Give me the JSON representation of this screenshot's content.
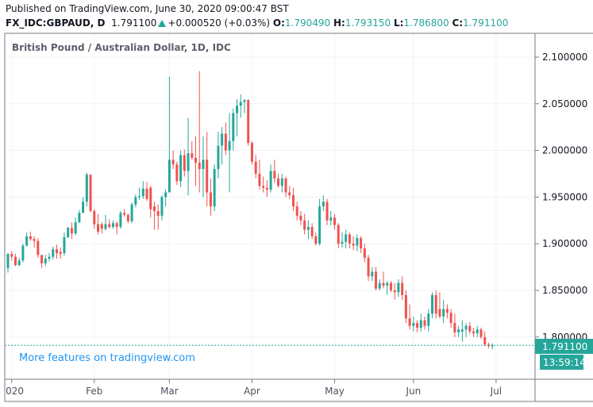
{
  "header": {
    "published": "Published on TradingView.com, June 30, 2020 09:00:47 BST",
    "symbol": "FX_IDC:GBPAUD, D",
    "last": "1.791100",
    "change": "+0.000520 (+0.03%)",
    "open_label": "O:",
    "open": "1.790490",
    "high_label": "H:",
    "high": "1.793150",
    "low_label": "L:",
    "low": "1.786800",
    "close_label": "C:",
    "close": "1.791100"
  },
  "chart_title": "British Pound / Australian Dollar, 1D, IDC",
  "watermark_link": "More features on tradingview.com",
  "colors": {
    "up": "#26a69a",
    "down": "#ef5350",
    "grid": "#f0f3fa",
    "axis": "#787b86",
    "link": "#2196f3"
  },
  "chart_data": {
    "type": "candlestick",
    "ylim": [
      1.775,
      2.125
    ],
    "price_ticks": [
      "2.100000",
      "2.050000",
      "2.000000",
      "1.950000",
      "1.900000",
      "1.850000",
      "1.800000"
    ],
    "time_ticks": [
      {
        "label": "2020",
        "date": "2020-01-02"
      },
      {
        "label": "Feb",
        "date": "2020-02-03"
      },
      {
        "label": "Mar",
        "date": "2020-03-02"
      },
      {
        "label": "Apr",
        "date": "2020-04-01"
      },
      {
        "label": "May",
        "date": "2020-05-01"
      },
      {
        "label": "Jun",
        "date": "2020-06-01"
      },
      {
        "label": "Jul",
        "date": "2020-07-01"
      }
    ],
    "last_price": "1.791100",
    "countdown": "13:59:14",
    "candles": [
      [
        "2020-01-01",
        1.874,
        1.89,
        1.869,
        1.889
      ],
      [
        "2020-01-02",
        1.889,
        1.892,
        1.882,
        1.886
      ],
      [
        "2020-01-03",
        1.886,
        1.889,
        1.876,
        1.877
      ],
      [
        "2020-01-06",
        1.877,
        1.885,
        1.876,
        1.882
      ],
      [
        "2020-01-07",
        1.882,
        1.9,
        1.88,
        1.898
      ],
      [
        "2020-01-08",
        1.898,
        1.912,
        1.897,
        1.908
      ],
      [
        "2020-01-09",
        1.908,
        1.913,
        1.903,
        1.905
      ],
      [
        "2020-01-10",
        1.905,
        1.908,
        1.896,
        1.903
      ],
      [
        "2020-01-13",
        1.903,
        1.906,
        1.885,
        1.888
      ],
      [
        "2020-01-14",
        1.888,
        1.888,
        1.874,
        1.879
      ],
      [
        "2020-01-15",
        1.879,
        1.888,
        1.876,
        1.884
      ],
      [
        "2020-01-16",
        1.884,
        1.89,
        1.881,
        1.886
      ],
      [
        "2020-01-17",
        1.886,
        1.897,
        1.883,
        1.894
      ],
      [
        "2020-01-20",
        1.894,
        1.899,
        1.884,
        1.89
      ],
      [
        "2020-01-21",
        1.891,
        1.896,
        1.884,
        1.889
      ],
      [
        "2020-01-22",
        1.89,
        1.912,
        1.887,
        1.907
      ],
      [
        "2020-01-23",
        1.907,
        1.918,
        1.906,
        1.917
      ],
      [
        "2020-01-24",
        1.917,
        1.923,
        1.905,
        1.911
      ],
      [
        "2020-01-27",
        1.911,
        1.928,
        1.909,
        1.923
      ],
      [
        "2020-01-28",
        1.923,
        1.936,
        1.922,
        1.933
      ],
      [
        "2020-01-29",
        1.933,
        1.95,
        1.933,
        1.945
      ],
      [
        "2020-01-30",
        1.945,
        1.976,
        1.94,
        1.974
      ],
      [
        "2020-01-31",
        1.974,
        1.974,
        1.934,
        1.935
      ],
      [
        "2020-02-03",
        1.935,
        1.937,
        1.916,
        1.921
      ],
      [
        "2020-02-04",
        1.921,
        1.932,
        1.91,
        1.913
      ],
      [
        "2020-02-05",
        1.921,
        1.923,
        1.911,
        1.916
      ],
      [
        "2020-02-06",
        1.916,
        1.931,
        1.914,
        1.921
      ],
      [
        "2020-02-07",
        1.921,
        1.926,
        1.916,
        1.918
      ],
      [
        "2020-02-10",
        1.918,
        1.925,
        1.916,
        1.922
      ],
      [
        "2020-02-11",
        1.922,
        1.924,
        1.91,
        1.918
      ],
      [
        "2020-02-12",
        1.918,
        1.935,
        1.916,
        1.933
      ],
      [
        "2020-02-13",
        1.933,
        1.937,
        1.929,
        1.931
      ],
      [
        "2020-02-14",
        1.931,
        1.932,
        1.922,
        1.924
      ],
      [
        "2020-02-17",
        1.924,
        1.944,
        1.922,
        1.942
      ],
      [
        "2020-02-18",
        1.942,
        1.953,
        1.939,
        1.95
      ],
      [
        "2020-02-19",
        1.95,
        1.96,
        1.947,
        1.951
      ],
      [
        "2020-02-20",
        1.951,
        1.967,
        1.948,
        1.959
      ],
      [
        "2020-02-21",
        1.959,
        1.966,
        1.946,
        1.948
      ],
      [
        "2020-02-24",
        1.96,
        1.962,
        1.928,
        1.937
      ],
      [
        "2020-02-25",
        1.94,
        1.945,
        1.915,
        1.935
      ],
      [
        "2020-02-26",
        1.935,
        1.942,
        1.915,
        1.93
      ],
      [
        "2020-02-27",
        1.93,
        1.952,
        1.925,
        1.95
      ],
      [
        "2020-02-28",
        1.95,
        1.958,
        1.94,
        1.955
      ],
      [
        "2020-03-02",
        1.955,
        2.079,
        1.955,
        1.99
      ],
      [
        "2020-03-03",
        1.99,
        2.0,
        1.98,
        1.985
      ],
      [
        "2020-03-04",
        1.985,
        1.988,
        1.963,
        1.967
      ],
      [
        "2020-03-05",
        1.967,
        2.0,
        1.961,
        1.995
      ],
      [
        "2020-03-06",
        1.995,
        2.001,
        1.972,
        1.978
      ],
      [
        "2020-03-09",
        1.978,
        2.035,
        1.952,
        1.997
      ],
      [
        "2020-03-10",
        1.997,
        2.01,
        1.99,
        1.992
      ],
      [
        "2020-03-11",
        1.992,
        2.015,
        1.962,
        1.987
      ],
      [
        "2020-03-12",
        1.987,
        2.085,
        1.955,
        1.98
      ],
      [
        "2020-03-13",
        1.98,
        2.015,
        1.95,
        1.99
      ],
      [
        "2020-03-16",
        1.99,
        2.02,
        1.94,
        1.955
      ],
      [
        "2020-03-17",
        1.955,
        1.97,
        1.93,
        1.94
      ],
      [
        "2020-03-18",
        1.94,
        1.985,
        1.935,
        1.98
      ],
      [
        "2020-03-19",
        1.98,
        2.02,
        1.97,
        2.005
      ],
      [
        "2020-03-20",
        2.005,
        2.025,
        1.985,
        2.018
      ],
      [
        "2020-03-23",
        2.018,
        2.03,
        1.995,
        2.0
      ],
      [
        "2020-03-24",
        2.0,
        2.04,
        1.955,
        2.01
      ],
      [
        "2020-03-25",
        2.01,
        2.045,
        2.0,
        2.04
      ],
      [
        "2020-03-26",
        2.04,
        2.055,
        2.015,
        2.048
      ],
      [
        "2020-03-27",
        2.048,
        2.06,
        2.035,
        2.052
      ],
      [
        "2020-03-30",
        2.052,
        2.055,
        2.04,
        2.054
      ],
      [
        "2020-03-31",
        2.054,
        2.055,
        2.005,
        2.008
      ],
      [
        "2020-04-01",
        2.008,
        2.01,
        1.985,
        1.988
      ],
      [
        "2020-04-02",
        1.988,
        1.995,
        1.97,
        1.975
      ],
      [
        "2020-04-03",
        1.975,
        1.99,
        1.958,
        1.962
      ],
      [
        "2020-04-06",
        1.962,
        1.972,
        1.955,
        1.96
      ],
      [
        "2020-04-07",
        1.96,
        1.968,
        1.95,
        1.958
      ],
      [
        "2020-04-08",
        1.958,
        1.985,
        1.955,
        1.978
      ],
      [
        "2020-04-09",
        1.978,
        1.99,
        1.965,
        1.97
      ],
      [
        "2020-04-10",
        1.97,
        1.975,
        1.96,
        1.962
      ],
      [
        "2020-04-13",
        1.962,
        1.975,
        1.955,
        1.97
      ],
      [
        "2020-04-14",
        1.97,
        1.972,
        1.95,
        1.955
      ],
      [
        "2020-04-15",
        1.955,
        1.962,
        1.948,
        1.952
      ],
      [
        "2020-04-16",
        1.952,
        1.96,
        1.935,
        1.94
      ],
      [
        "2020-04-17",
        1.94,
        1.945,
        1.925,
        1.93
      ],
      [
        "2020-04-20",
        1.93,
        1.935,
        1.92,
        1.925
      ],
      [
        "2020-04-21",
        1.925,
        1.932,
        1.91,
        1.915
      ],
      [
        "2020-04-22",
        1.915,
        1.925,
        1.905,
        1.918
      ],
      [
        "2020-04-23",
        1.918,
        1.922,
        1.905,
        1.908
      ],
      [
        "2020-04-24",
        1.908,
        1.912,
        1.898,
        1.9
      ],
      [
        "2020-04-27",
        1.9,
        1.948,
        1.898,
        1.94
      ],
      [
        "2020-04-28",
        1.94,
        1.952,
        1.935,
        1.945
      ],
      [
        "2020-04-29",
        1.945,
        1.948,
        1.92,
        1.925
      ],
      [
        "2020-04-30",
        1.925,
        1.935,
        1.92,
        1.928
      ],
      [
        "2020-05-01",
        1.928,
        1.932,
        1.915,
        1.92
      ],
      [
        "2020-05-04",
        1.92,
        1.922,
        1.895,
        1.9
      ],
      [
        "2020-05-05",
        1.9,
        1.912,
        1.896,
        1.902
      ],
      [
        "2020-05-06",
        1.902,
        1.915,
        1.895,
        1.91
      ],
      [
        "2020-05-07",
        1.91,
        1.912,
        1.895,
        1.9
      ],
      [
        "2020-05-08",
        1.9,
        1.908,
        1.893,
        1.898
      ],
      [
        "2020-05-11",
        1.898,
        1.91,
        1.892,
        1.906
      ],
      [
        "2020-05-12",
        1.906,
        1.908,
        1.89,
        1.895
      ],
      [
        "2020-05-13",
        1.895,
        1.9,
        1.88,
        1.885
      ],
      [
        "2020-05-14",
        1.885,
        1.888,
        1.86,
        1.865
      ],
      [
        "2020-05-15",
        1.865,
        1.875,
        1.86,
        1.87
      ],
      [
        "2020-05-18",
        1.87,
        1.875,
        1.85,
        1.852
      ],
      [
        "2020-05-19",
        1.852,
        1.862,
        1.85,
        1.858
      ],
      [
        "2020-05-20",
        1.858,
        1.87,
        1.852,
        1.855
      ],
      [
        "2020-05-21",
        1.855,
        1.86,
        1.845,
        1.858
      ],
      [
        "2020-05-22",
        1.858,
        1.86,
        1.848,
        1.85
      ],
      [
        "2020-05-25",
        1.85,
        1.858,
        1.84,
        1.848
      ],
      [
        "2020-05-26",
        1.848,
        1.862,
        1.843,
        1.858
      ],
      [
        "2020-05-27",
        1.858,
        1.865,
        1.84,
        1.845
      ],
      [
        "2020-05-28",
        1.845,
        1.85,
        1.815,
        1.82
      ],
      [
        "2020-05-29",
        1.82,
        1.835,
        1.808,
        1.812
      ],
      [
        "2020-06-01",
        1.812,
        1.822,
        1.806,
        1.815
      ],
      [
        "2020-06-02",
        1.815,
        1.818,
        1.805,
        1.81
      ],
      [
        "2020-06-03",
        1.81,
        1.825,
        1.806,
        1.818
      ],
      [
        "2020-06-04",
        1.818,
        1.822,
        1.808,
        1.812
      ],
      [
        "2020-06-05",
        1.812,
        1.83,
        1.806,
        1.825
      ],
      [
        "2020-06-08",
        1.825,
        1.848,
        1.82,
        1.845
      ],
      [
        "2020-06-09",
        1.845,
        1.85,
        1.82,
        1.825
      ],
      [
        "2020-06-10",
        1.83,
        1.848,
        1.82,
        1.822
      ],
      [
        "2020-06-11",
        1.822,
        1.84,
        1.815,
        1.83
      ],
      [
        "2020-06-12",
        1.83,
        1.835,
        1.82,
        1.826
      ],
      [
        "2020-06-15",
        1.826,
        1.83,
        1.81,
        1.815
      ],
      [
        "2020-06-16",
        1.815,
        1.825,
        1.8,
        1.805
      ],
      [
        "2020-06-17",
        1.805,
        1.812,
        1.8,
        1.808
      ],
      [
        "2020-06-18",
        1.806,
        1.818,
        1.795,
        1.808
      ],
      [
        "2020-06-19",
        1.808,
        1.815,
        1.8,
        1.812
      ],
      [
        "2020-06-22",
        1.812,
        1.816,
        1.803,
        1.806
      ],
      [
        "2020-06-23",
        1.806,
        1.81,
        1.8,
        1.804
      ],
      [
        "2020-06-24",
        1.804,
        1.812,
        1.8,
        1.808
      ],
      [
        "2020-06-25",
        1.808,
        1.81,
        1.798,
        1.8
      ],
      [
        "2020-06-26",
        1.8,
        1.806,
        1.79,
        1.792
      ],
      [
        "2020-06-29",
        1.792,
        1.794,
        1.788,
        1.7905
      ],
      [
        "2020-06-30",
        1.79049,
        1.79315,
        1.7868,
        1.7911
      ]
    ]
  }
}
